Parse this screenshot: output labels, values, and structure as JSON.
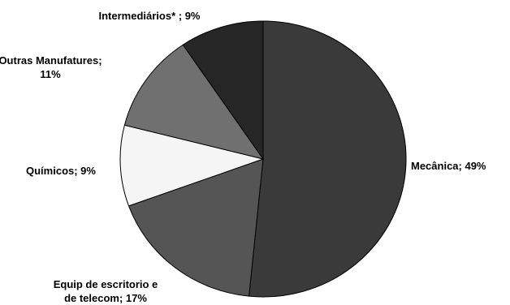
{
  "chart_data": {
    "type": "pie",
    "title": "",
    "start_angle_deg": 90,
    "direction": "clockwise",
    "legend": "none",
    "slices": [
      {
        "label_lines": [
          "Mecânica; 49%"
        ],
        "value": 49,
        "color": "#3a3a3a"
      },
      {
        "label_lines": [
          "Equip de escritorio e",
          "de telecom; 17%"
        ],
        "value": 17,
        "color": "#555555"
      },
      {
        "label_lines": [
          "Químicos; 9%"
        ],
        "value": 9,
        "color": "#f5f5f5"
      },
      {
        "label_lines": [
          "Outras Manufatures;",
          "11%"
        ],
        "value": 11,
        "color": "#707070"
      },
      {
        "label_lines": [
          "Intermediários* ; 9%"
        ],
        "value": 9,
        "color": "#262626"
      }
    ]
  }
}
